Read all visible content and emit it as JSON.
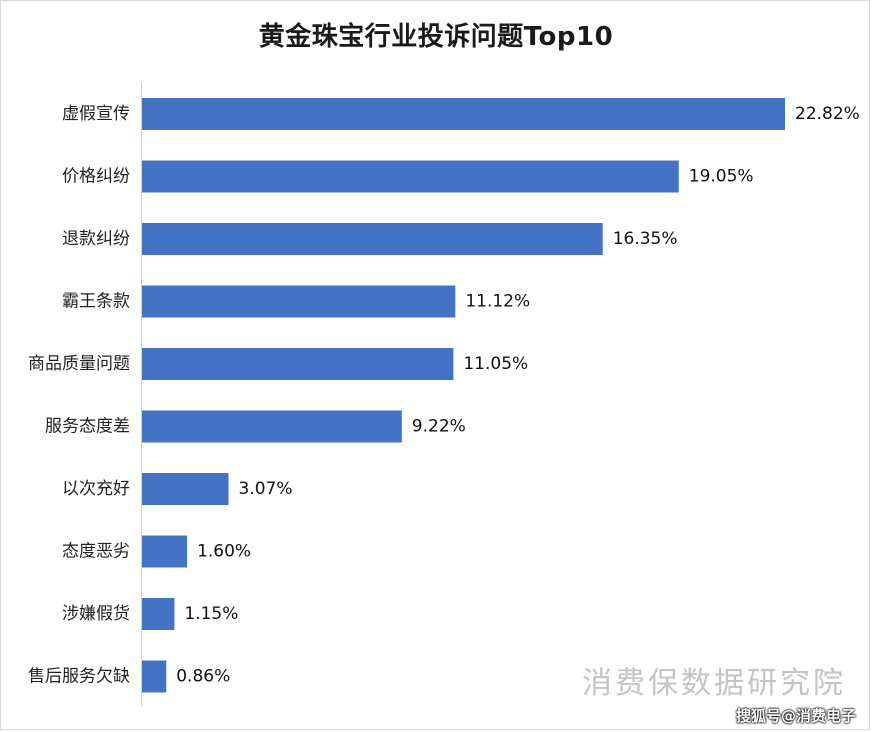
{
  "chart_data": {
    "type": "bar",
    "orientation": "horizontal",
    "title": "黄金珠宝行业投诉问题Top10",
    "categories": [
      "虚假宣传",
      "价格纠纷",
      "退款纠纷",
      "霸王条款",
      "商品质量问题",
      "服务态度差",
      "以次充好",
      "态度恶劣",
      "涉嫌假货",
      "售后服务欠缺"
    ],
    "values": [
      22.82,
      19.05,
      16.35,
      11.12,
      11.05,
      9.22,
      3.07,
      1.6,
      1.15,
      0.86
    ],
    "value_labels": [
      "22.82%",
      "19.05%",
      "16.35%",
      "11.12%",
      "11.05%",
      "9.22%",
      "3.07%",
      "1.60%",
      "1.15%",
      "0.86%"
    ],
    "xlim": [
      0,
      22.82
    ],
    "grid": false,
    "legend": "none",
    "bar_color": "#4472c4"
  },
  "watermark": "消费保数据研究院",
  "source": "搜狐号@消费电子"
}
